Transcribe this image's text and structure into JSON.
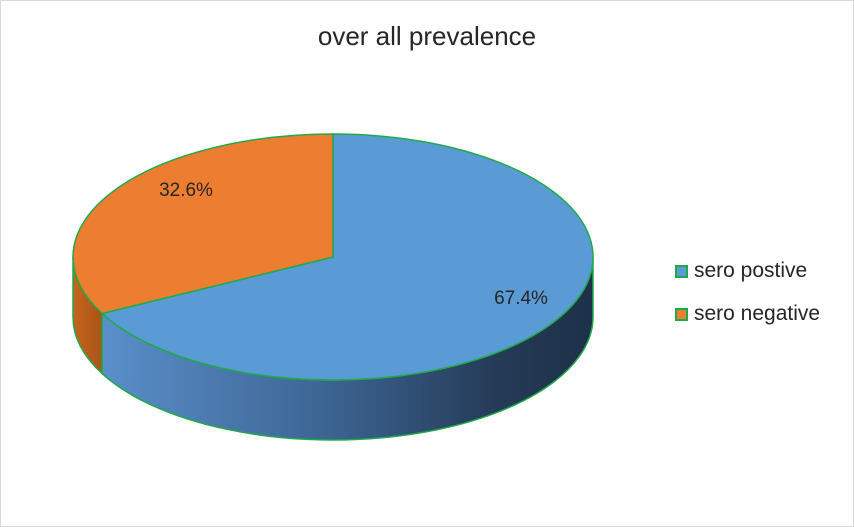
{
  "chart_data": {
    "type": "pie",
    "title": "over all prevalence",
    "slices": [
      {
        "label": "sero postive",
        "value": 67.4,
        "data_label": "67.4%",
        "color": "#5b9bd5"
      },
      {
        "label": "sero negative",
        "value": 32.6,
        "data_label": "32.6%",
        "color": "#ed7d31"
      }
    ],
    "edge_color": "#1faa4a",
    "legend_position": "right",
    "style": "3d-pie"
  }
}
